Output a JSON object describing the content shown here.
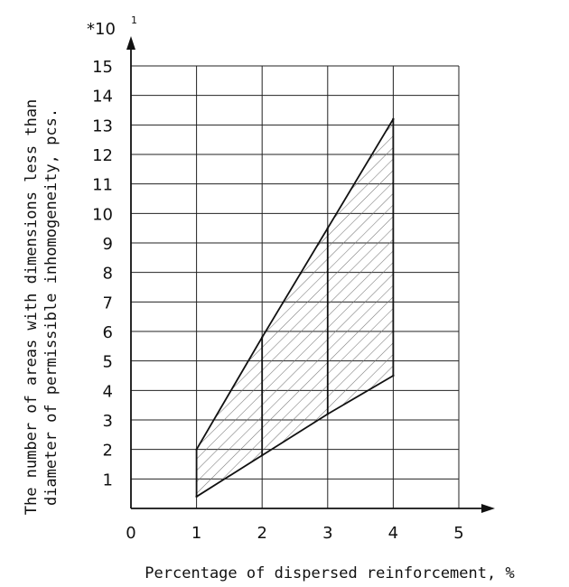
{
  "chart_data": {
    "type": "area",
    "xlabel": "Percentage of dispersed reinforcement, %",
    "ylabel_lines": [
      "The number of areas with dimensions less than",
      "diameter of permissible inhomogeneity, pcs."
    ],
    "y_multiplier": "*10",
    "y_multiplier_exponent": "1",
    "xlim": [
      0,
      5
    ],
    "ylim": [
      0,
      15
    ],
    "x_ticks": [
      "0",
      "1",
      "2",
      "3",
      "4",
      "5"
    ],
    "y_ticks": [
      "1",
      "2",
      "3",
      "4",
      "5",
      "6",
      "7",
      "8",
      "9",
      "10",
      "11",
      "12",
      "13",
      "14",
      "15"
    ],
    "grid": true,
    "series": [
      {
        "x": [
          1,
          2,
          3,
          4
        ],
        "y": [
          2.0,
          5.8,
          9.5,
          13.2
        ]
      },
      {
        "x": [
          1,
          2,
          3,
          4
        ],
        "y": [
          0.4,
          1.8,
          3.2,
          4.5
        ]
      }
    ],
    "hatch": true,
    "colors": {
      "line": "#111111",
      "grid": "#222222",
      "hatch": "#777777"
    }
  }
}
